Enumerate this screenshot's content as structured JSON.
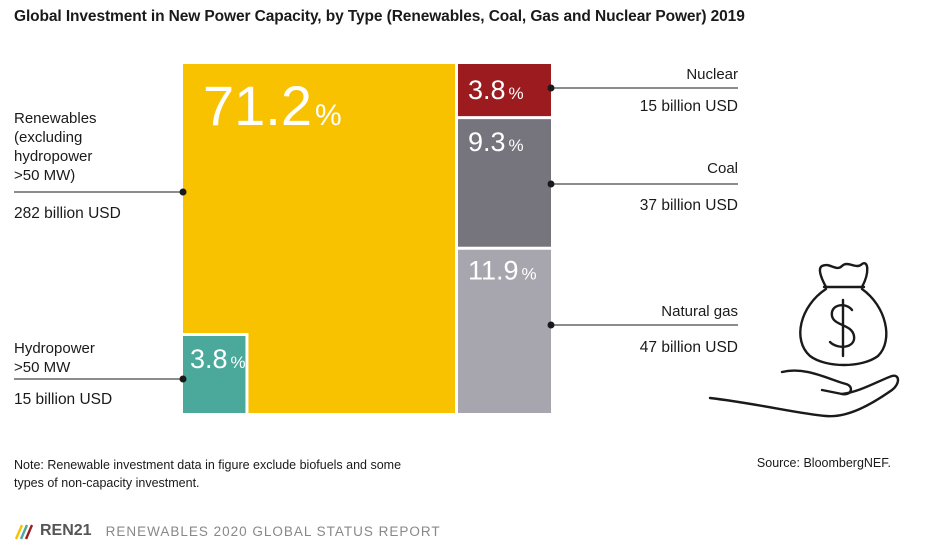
{
  "title": "Global Investment in New Power Capacity, by Type (Renewables, Coal, Gas and Nuclear Power) 2019",
  "note": "Note: Renewable investment data in figure exclude biofuels and some types of non-capacity investment.",
  "source": "Source: BloombergNEF.",
  "footer": {
    "brand": "REN21",
    "report": "RENEWABLES 2020 GLOBAL STATUS REPORT"
  },
  "colors": {
    "renewables": "#f8c200",
    "hydropower": "#4aa99b",
    "nuclear": "#9b1b1e",
    "coal": "#76757e",
    "gas": "#a7a6ae"
  },
  "icon": "money-bag-hand-icon",
  "chart_data": {
    "type": "treemap",
    "unit": "%",
    "items": [
      {
        "key": "renewables",
        "label_lines": [
          "Renewables",
          "(excluding",
          "hydropower",
          ">50 MW)"
        ],
        "value": 71.2,
        "value_text": "71.2",
        "amount": "282 billion USD"
      },
      {
        "key": "hydropower",
        "label_lines": [
          "Hydropower",
          ">50 MW"
        ],
        "value": 3.8,
        "value_text": "3.8",
        "amount": "15 billion USD"
      },
      {
        "key": "nuclear",
        "label_lines": [
          "Nuclear"
        ],
        "value": 3.8,
        "value_text": "3.8",
        "amount": "15 billion USD"
      },
      {
        "key": "coal",
        "label_lines": [
          "Coal"
        ],
        "value": 9.3,
        "value_text": "9.3",
        "amount": "37 billion USD"
      },
      {
        "key": "gas",
        "label_lines": [
          "Natural gas"
        ],
        "value": 11.9,
        "value_text": "11.9",
        "amount": "47 billion USD"
      }
    ]
  }
}
